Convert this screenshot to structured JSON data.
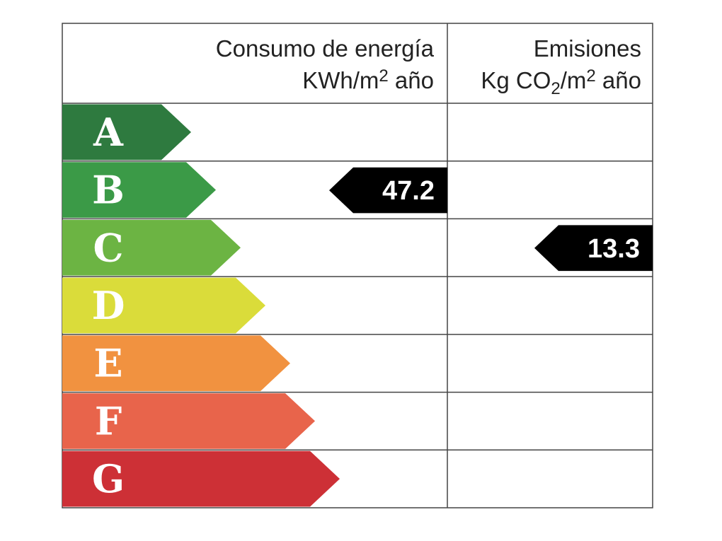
{
  "header": {
    "energy": {
      "title": "Consumo de energía",
      "unit": [
        "KWh/m",
        "2",
        " año"
      ]
    },
    "emissions": {
      "title": "Emisiones",
      "unit": [
        "Kg CO",
        "2",
        "/m",
        "2",
        " año"
      ]
    }
  },
  "rows": [
    {
      "letter": "A",
      "color": "#2e7a3f"
    },
    {
      "letter": "B",
      "color": "#3b9a47",
      "energy": 47.2
    },
    {
      "letter": "C",
      "color": "#6cb443",
      "emissions": 13.3
    },
    {
      "letter": "D",
      "color": "#dadc3a"
    },
    {
      "letter": "E",
      "color": "#f19240"
    },
    {
      "letter": "F",
      "color": "#e8644b"
    },
    {
      "letter": "G",
      "color": "#cd3036"
    }
  ]
}
